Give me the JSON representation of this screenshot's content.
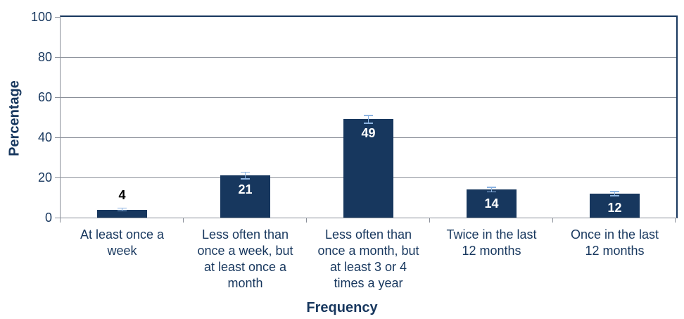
{
  "chart_data": {
    "type": "bar",
    "title": "",
    "xlabel": "Frequency",
    "ylabel": "Percentage",
    "categories": [
      "At least once a week",
      "Less often than once a week, but at least once a month",
      "Less often than once a month, but at least 3 or 4 times a year",
      "Twice in the last 12 months",
      "Once in the last 12 months"
    ],
    "category_lines": [
      [
        "At least once a",
        "week"
      ],
      [
        "Less often than",
        "once a week, but",
        "at least once a",
        "month"
      ],
      [
        "Less often than",
        "once a month, but",
        "at least 3 or 4",
        "times a year"
      ],
      [
        "Twice in the last",
        "12 months"
      ],
      [
        "Once in the last",
        "12 months"
      ]
    ],
    "values": [
      4,
      21,
      49,
      14,
      12
    ],
    "value_labels": [
      "4",
      "21",
      "49",
      "14",
      "12"
    ],
    "error_bars": [
      1.0,
      1.9,
      2.2,
      1.4,
      1.3
    ],
    "ylim": [
      0,
      100
    ],
    "y_ticks": [
      0,
      20,
      40,
      60,
      80,
      100
    ],
    "grid": true,
    "legend": false,
    "colors": {
      "bar_fill": "#17375E",
      "plot_border": "#17375E",
      "gridline": "#8A8F99",
      "axis_line": "#8A8F99",
      "error_bar": "#8DB4E2",
      "axis_text": "#17375E",
      "label_inside": "#FFFFFF",
      "label_outside": "#000000",
      "background": "#FFFFFF"
    }
  }
}
